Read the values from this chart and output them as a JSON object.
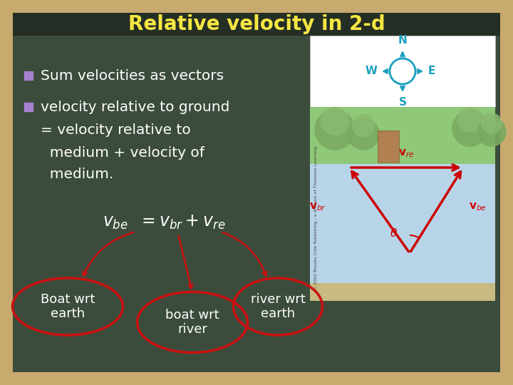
{
  "title": "Relative velocity in 2-d",
  "title_color": "#F5E642",
  "title_fontsize": 20,
  "bg_color": "#3C4C3C",
  "outer_border_color": "#C8A96E",
  "title_bar_color": "#252E25",
  "bullet_color": "#A880D0",
  "bullet1": "Sum velocities as vectors",
  "bullet2_line1": "velocity relative to ground",
  "bullet2_line2": "= velocity relative to",
  "bullet2_line3": "  medium + velocity of",
  "bullet2_line4": "  medium.",
  "text_color": "#FFFFFF",
  "text_fontsize": 14.5,
  "label1": "Boat wrt\nearth",
  "label2": "boat wrt\nriver",
  "label3": "river wrt\nearth",
  "ellipse_color": "#CC1111",
  "arrow_color": "#CC1111",
  "eq_fontsize": 16,
  "label_fontsize": 13,
  "compass_color": "#1A9FBF",
  "vector_color": "#CC0000",
  "photo_white_bg": "#FFFFFF",
  "water_color": "#B8D4E8",
  "shore_top_color": "#8FC878",
  "shore_bottom_color": "#C8BA80",
  "copyright_color": "#444444"
}
